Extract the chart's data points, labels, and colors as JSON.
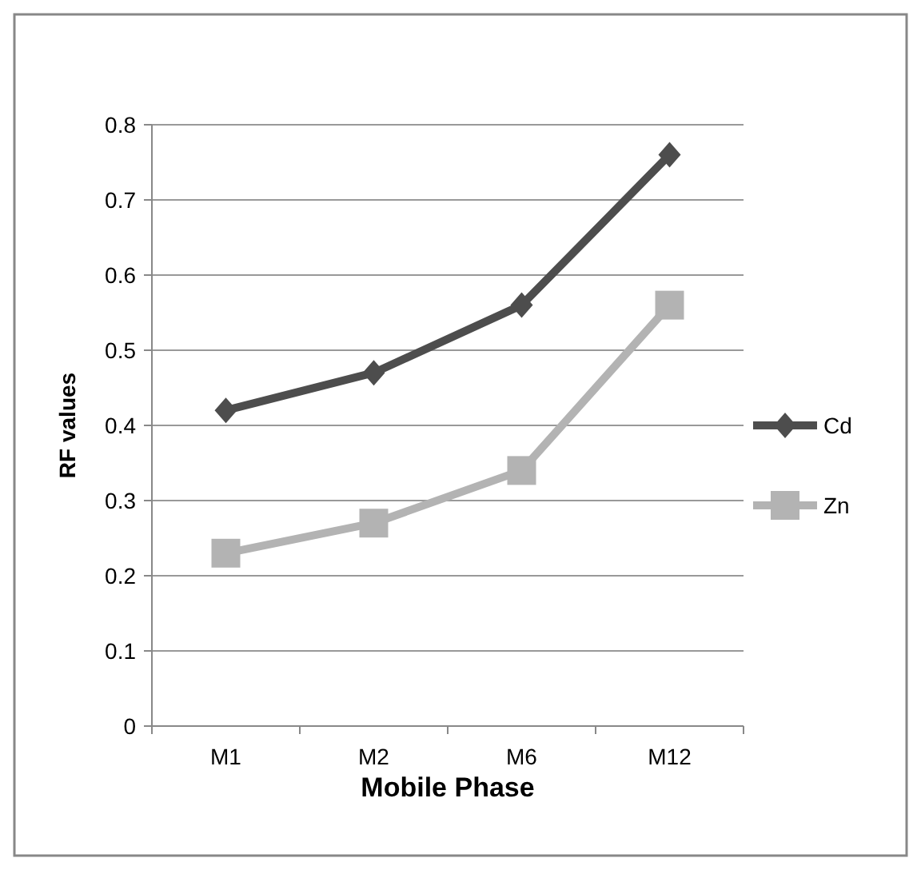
{
  "chart_data": {
    "type": "line",
    "xlabel": "Mobile Phase",
    "ylabel": "RF values",
    "categories": [
      "M1",
      "M2",
      "M6",
      "M12"
    ],
    "series": [
      {
        "name": "Cd",
        "color": "#4d4d4d",
        "marker": "diamond",
        "values": [
          0.42,
          0.47,
          0.56,
          0.76
        ]
      },
      {
        "name": "Zn",
        "color": "#b3b3b3",
        "marker": "square",
        "values": [
          0.23,
          0.27,
          0.34,
          0.56
        ]
      }
    ],
    "ylim": [
      0,
      0.8
    ],
    "yticks": [
      0,
      0.1,
      0.2,
      0.3,
      0.4,
      0.5,
      0.6,
      0.7,
      0.8
    ],
    "grid": "y",
    "legend": "right",
    "line_style": "solid"
  }
}
